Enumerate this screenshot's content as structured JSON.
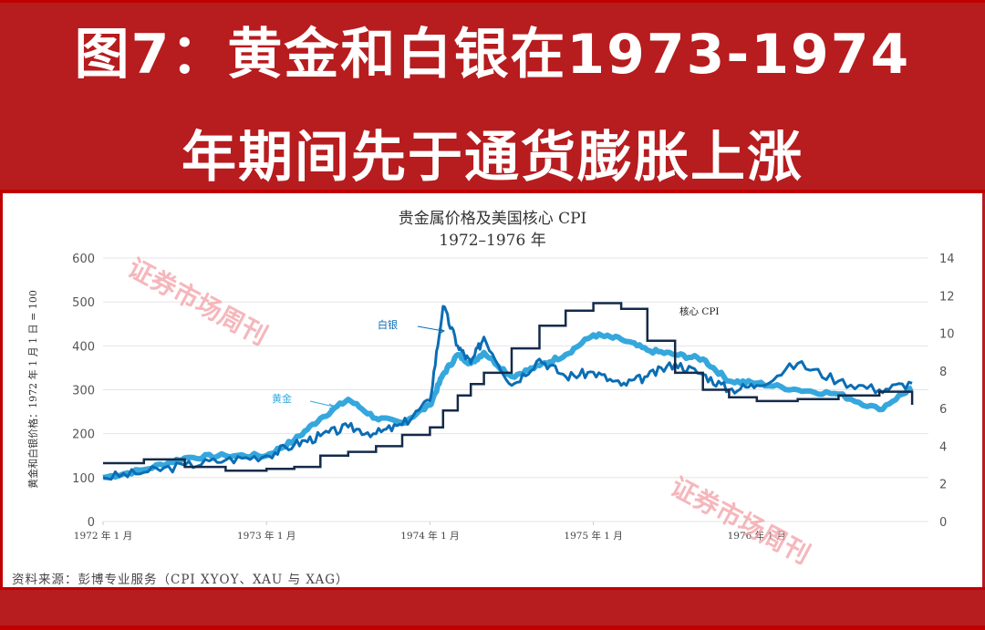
{
  "header": {
    "title_line1": "图7：黄金和白银在1973-1974",
    "title_line2": "年期间先于通货膨胀上涨"
  },
  "source": "资料来源：彭博专业服务（CPI XYOY、XAU 与 XAG）",
  "watermark": "证券市场周刊",
  "colors": {
    "background_red": "#b71c1f",
    "gold": "#35a7dd",
    "silver": "#0b6db4",
    "core_cpi": "#142a4a",
    "watermark": "#f2a0a6"
  },
  "chart_data": {
    "type": "line",
    "title": "贵金属价格及美国核心 CPI",
    "subtitle": "1972–1976 年",
    "xlabel": "",
    "ylabel": "黄金和白银价格：1972 年 1 月 1 日 = 100",
    "y2label": "",
    "ylim": [
      0,
      600
    ],
    "y2lim": [
      0,
      14
    ],
    "yticks": [
      "0",
      "100",
      "200",
      "300",
      "400",
      "500",
      "600"
    ],
    "y2ticks": [
      "0",
      "2",
      "4",
      "6",
      "8",
      "10",
      "12",
      "14"
    ],
    "xticks": [
      "1972 年 1 月",
      "1973 年 1 月",
      "1974 年 1 月",
      "1975 年 1 月",
      "1976 年 1 月"
    ],
    "grid": true,
    "legend_position": "inline annotations",
    "annotations": [
      {
        "text": "黄金",
        "target": "gold"
      },
      {
        "text": "白银",
        "target": "silver"
      },
      {
        "text": "核心 CPI",
        "target": "core_cpi"
      }
    ],
    "x": [
      1972.0,
      1972.25,
      1972.5,
      1972.75,
      1973.0,
      1973.17,
      1973.33,
      1973.5,
      1973.67,
      1973.83,
      1974.0,
      1974.08,
      1974.17,
      1974.25,
      1974.33,
      1974.5,
      1974.67,
      1974.83,
      1975.0,
      1975.17,
      1975.33,
      1975.5,
      1975.67,
      1975.83,
      1976.0,
      1976.25,
      1976.5,
      1976.75,
      1976.95
    ],
    "series": [
      {
        "name": "黄金",
        "axis": "left",
        "values": [
          100,
          118,
          145,
          150,
          150,
          185,
          235,
          278,
          235,
          225,
          265,
          335,
          380,
          360,
          385,
          330,
          355,
          380,
          425,
          415,
          390,
          380,
          370,
          320,
          315,
          300,
          290,
          255,
          305
        ]
      },
      {
        "name": "白银",
        "axis": "left",
        "values": [
          100,
          112,
          128,
          140,
          150,
          175,
          195,
          215,
          200,
          220,
          275,
          490,
          400,
          360,
          420,
          310,
          370,
          330,
          340,
          310,
          330,
          360,
          335,
          300,
          310,
          360,
          320,
          300,
          315
        ]
      },
      {
        "name": "核心 CPI",
        "axis": "right",
        "values": [
          3.1,
          3.3,
          2.9,
          2.7,
          2.8,
          2.9,
          3.5,
          3.7,
          4.0,
          4.6,
          5.0,
          5.9,
          6.7,
          7.3,
          7.9,
          9.2,
          10.4,
          11.2,
          11.6,
          11.3,
          9.6,
          7.9,
          7.0,
          6.6,
          6.4,
          6.5,
          6.7,
          6.9,
          6.2
        ]
      }
    ]
  }
}
